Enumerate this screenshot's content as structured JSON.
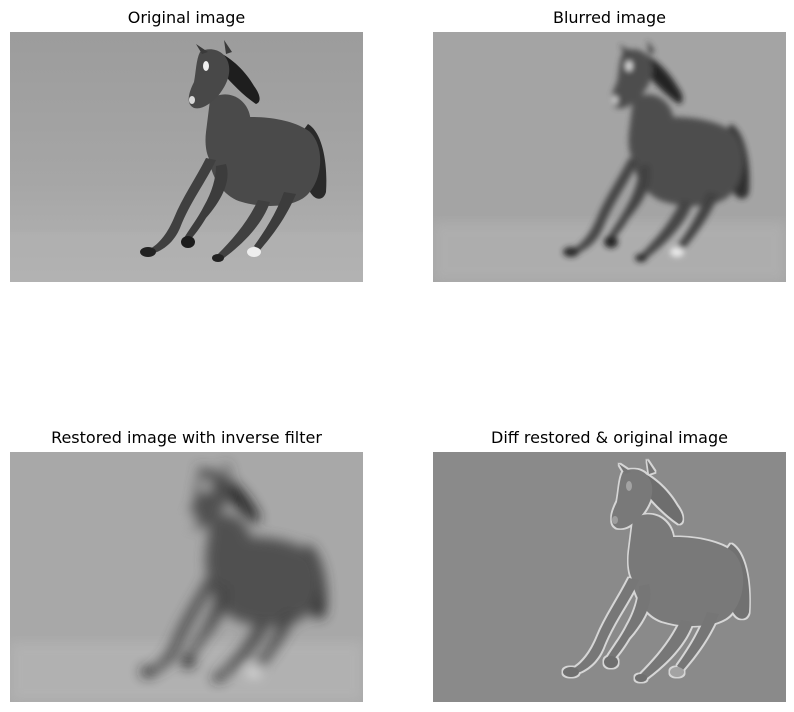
{
  "figure": {
    "panels": [
      {
        "title": "Original image",
        "picture": "running-horse-grayscale"
      },
      {
        "title": "Blurred image",
        "picture": "running-horse-grayscale-blurred"
      },
      {
        "title": "Restored image with inverse filter",
        "picture": "running-horse-grayscale-heavily-blurred"
      },
      {
        "title": "Diff restored & original image",
        "picture": "horse-edge-difference-map"
      }
    ]
  },
  "colors": {
    "ground": "#a9a9a9",
    "horse": "#4a4a4a",
    "mane": "#1e1e1e",
    "diff_background": "#8a8a8a",
    "diff_edges": "#d6d6d6"
  }
}
